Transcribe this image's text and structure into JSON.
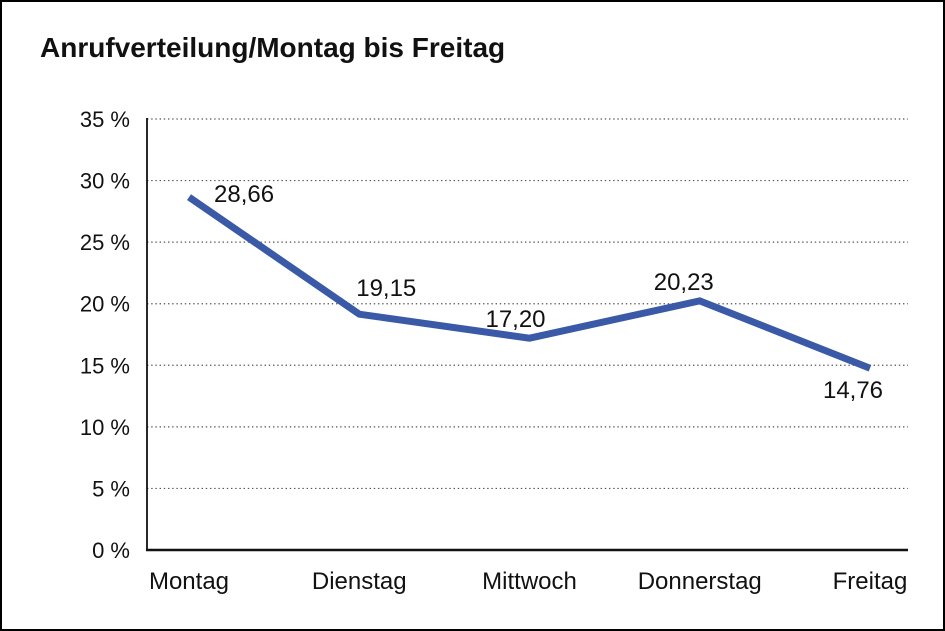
{
  "page": {
    "background_color": "#ffffff",
    "border_color": "#000000"
  },
  "chart_data": {
    "type": "line",
    "title": "Anrufverteilung/Montag bis Freitag",
    "categories": [
      "Montag",
      "Dienstag",
      "Mittwoch",
      "Donnerstag",
      "Freitag"
    ],
    "series": [
      {
        "name": "Anrufverteilung",
        "values": [
          28.66,
          19.15,
          17.2,
          20.23,
          14.76
        ]
      }
    ],
    "data_labels": [
      "28,66",
      "19,15",
      "17,20",
      "20,23",
      "14,76"
    ],
    "xlabel": "",
    "ylabel": "",
    "ylim": [
      0,
      35
    ],
    "y_tick_step": 5,
    "y_ticks": [
      {
        "value": 0,
        "label": "0 %"
      },
      {
        "value": 5,
        "label": "5 %"
      },
      {
        "value": 10,
        "label": "10 %"
      },
      {
        "value": 15,
        "label": "15 %"
      },
      {
        "value": 20,
        "label": "20 %"
      },
      {
        "value": 25,
        "label": "25 %"
      },
      {
        "value": 30,
        "label": "30 %"
      },
      {
        "value": 35,
        "label": "35 %"
      }
    ],
    "grid": "horizontal-dotted",
    "legend": "none",
    "line_color": "#3A5AA8",
    "axis_color": "#111111",
    "gridline_color": "#555555",
    "text_color": "#111111"
  }
}
